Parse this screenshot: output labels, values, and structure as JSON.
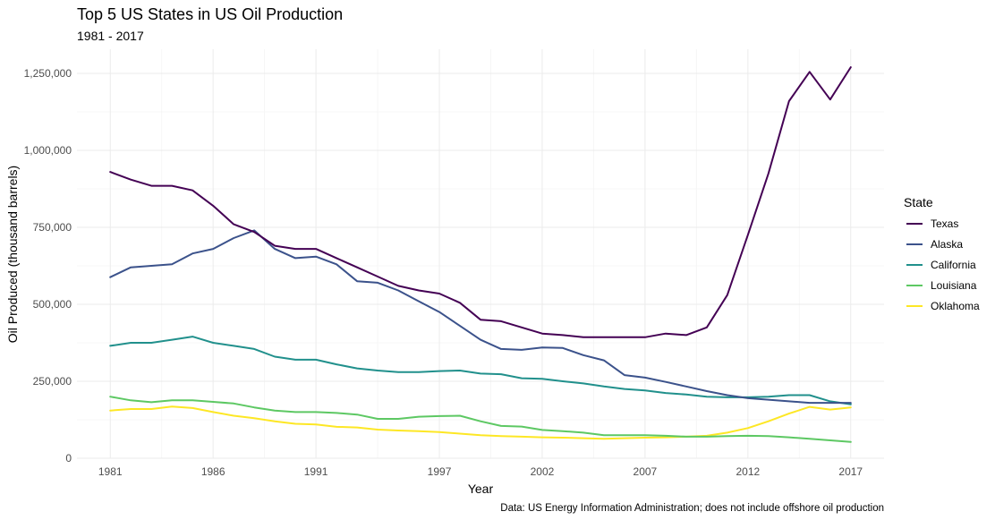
{
  "chart_data": {
    "type": "line",
    "title": "Top 5 US States in US Oil Production",
    "subtitle": "1981 - 2017",
    "xlabel": "Year",
    "ylabel": "Oil Produced (thousand barrels)",
    "caption": "Data: US Energy Information Administration; does not include offshore oil production",
    "xlim": [
      1981,
      2017
    ],
    "ylim": [
      0,
      1270000
    ],
    "x_ticks": [
      1981,
      1986,
      1991,
      1997,
      2002,
      2007,
      2012,
      2017
    ],
    "x_tick_labels": [
      "1981",
      "1986",
      "1991",
      "1997",
      "2002",
      "2007",
      "2012",
      "2017"
    ],
    "y_ticks": [
      0,
      250000,
      500000,
      750000,
      1000000,
      1250000
    ],
    "y_tick_labels": [
      "0",
      "250,000",
      "500,000",
      "750,000",
      "1,000,000",
      "1,250,000"
    ],
    "grid": true,
    "legend": {
      "title": "State",
      "position": "right"
    },
    "x": [
      1981,
      1982,
      1983,
      1984,
      1985,
      1986,
      1987,
      1988,
      1989,
      1990,
      1991,
      1992,
      1993,
      1994,
      1995,
      1996,
      1997,
      1998,
      1999,
      2000,
      2001,
      2002,
      2003,
      2004,
      2005,
      2006,
      2007,
      2008,
      2009,
      2010,
      2011,
      2012,
      2013,
      2014,
      2015,
      2016,
      2017
    ],
    "series": [
      {
        "name": "Texas",
        "color": "#440154",
        "values": [
          930000,
          905000,
          885000,
          885000,
          870000,
          820000,
          760000,
          735000,
          690000,
          680000,
          680000,
          650000,
          620000,
          590000,
          560000,
          545000,
          535000,
          505000,
          450000,
          445000,
          425000,
          405000,
          400000,
          393000,
          393000,
          393000,
          393000,
          405000,
          400000,
          425000,
          530000,
          725000,
          925000,
          1160000,
          1255000,
          1165000,
          1270000
        ]
      },
      {
        "name": "Alaska",
        "color": "#3b528b",
        "values": [
          588000,
          620000,
          625000,
          630000,
          665000,
          680000,
          715000,
          740000,
          680000,
          650000,
          655000,
          630000,
          575000,
          570000,
          545000,
          510000,
          475000,
          430000,
          385000,
          355000,
          352000,
          360000,
          358000,
          335000,
          318000,
          270000,
          262000,
          248000,
          233000,
          218000,
          205000,
          195000,
          190000,
          185000,
          180000,
          180000,
          180000
        ]
      },
      {
        "name": "California",
        "color": "#21908c",
        "values": [
          365000,
          375000,
          375000,
          385000,
          395000,
          375000,
          365000,
          355000,
          330000,
          320000,
          320000,
          305000,
          292000,
          285000,
          280000,
          280000,
          283000,
          285000,
          275000,
          273000,
          260000,
          258000,
          250000,
          243000,
          233000,
          225000,
          220000,
          212000,
          207000,
          200000,
          198000,
          198000,
          200000,
          205000,
          205000,
          185000,
          175000
        ]
      },
      {
        "name": "Louisiana",
        "color": "#5dc863",
        "values": [
          200000,
          188000,
          182000,
          188000,
          188000,
          183000,
          178000,
          165000,
          155000,
          150000,
          150000,
          147000,
          142000,
          128000,
          128000,
          135000,
          137000,
          138000,
          120000,
          105000,
          103000,
          92000,
          88000,
          83000,
          75000,
          75000,
          75000,
          73000,
          70000,
          70000,
          72000,
          73000,
          72000,
          68000,
          63000,
          58000,
          53000
        ]
      },
      {
        "name": "Oklahoma",
        "color": "#fde725",
        "values": [
          155000,
          160000,
          160000,
          168000,
          163000,
          150000,
          138000,
          130000,
          120000,
          112000,
          110000,
          102000,
          100000,
          93000,
          90000,
          88000,
          85000,
          80000,
          75000,
          72000,
          70000,
          68000,
          67000,
          65000,
          63000,
          65000,
          67000,
          68000,
          70000,
          73000,
          83000,
          98000,
          120000,
          145000,
          167000,
          158000,
          165000
        ]
      }
    ]
  }
}
